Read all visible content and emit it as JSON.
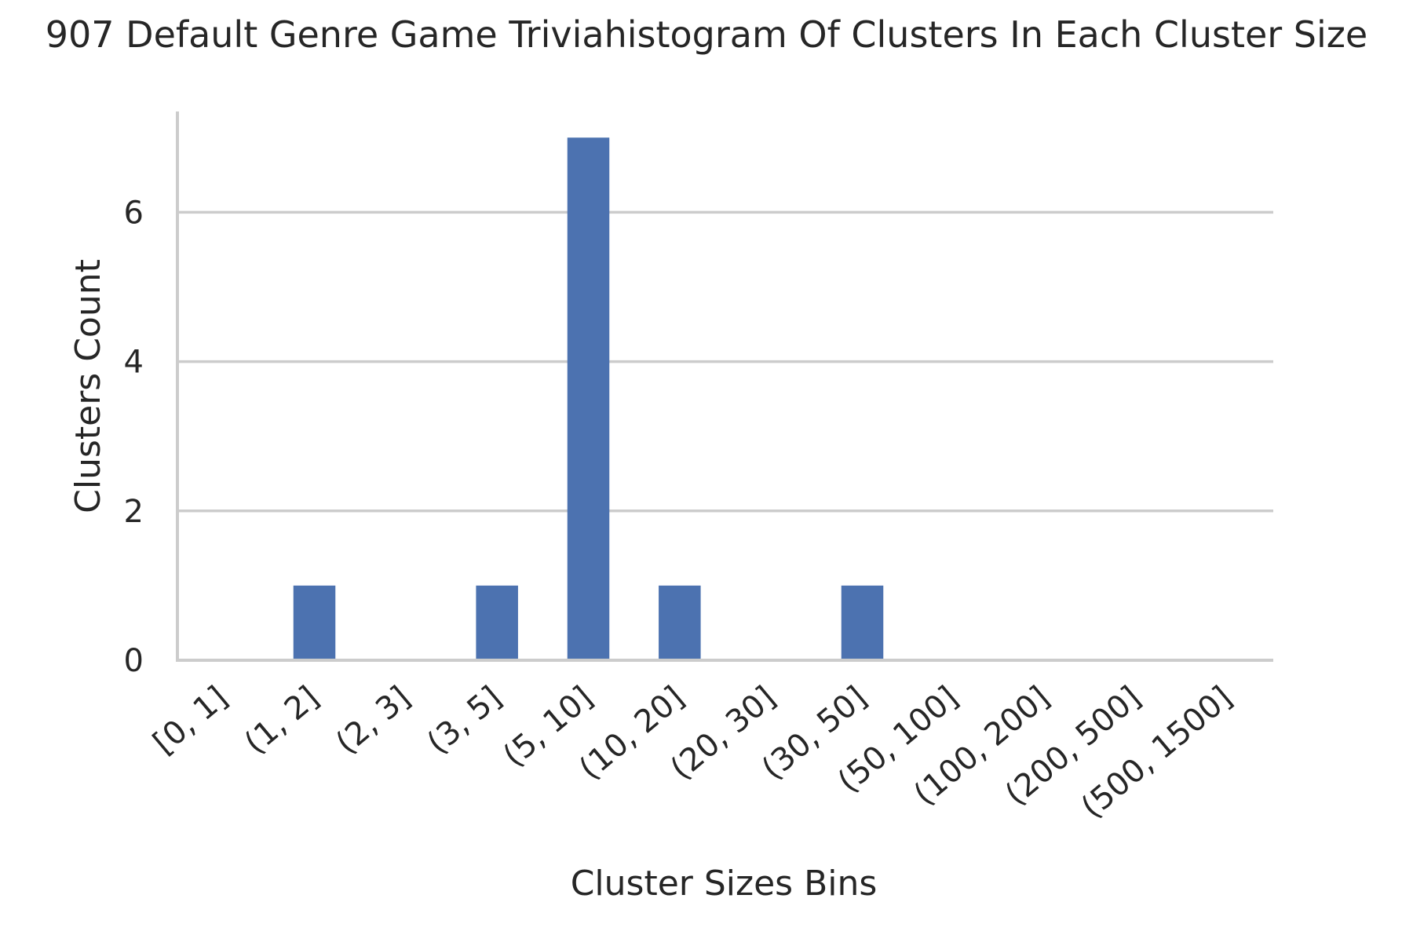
{
  "chart_data": {
    "type": "bar",
    "title": "907 Default Genre Game Triviahistogram Of Clusters In Each Cluster Size",
    "xlabel": "Cluster Sizes Bins",
    "ylabel": "Clusters Count",
    "categories": [
      "[0, 1]",
      "(1, 2]",
      "(2, 3]",
      "(3, 5]",
      "(5, 10]",
      "(10, 20]",
      "(20, 30]",
      "(30, 50]",
      "(50, 100]",
      "(100, 200]",
      "(200, 500]",
      "(500, 1500]"
    ],
    "values": [
      0,
      1,
      0,
      1,
      7,
      1,
      0,
      1,
      0,
      0,
      0,
      0
    ],
    "ylim": [
      0,
      7.35
    ],
    "yticks": [
      0,
      2,
      4,
      6
    ],
    "grid": "horizontal",
    "bar_color": "#4c72b0",
    "grid_color": "#cccccc",
    "axis_color": "#cccccc"
  }
}
